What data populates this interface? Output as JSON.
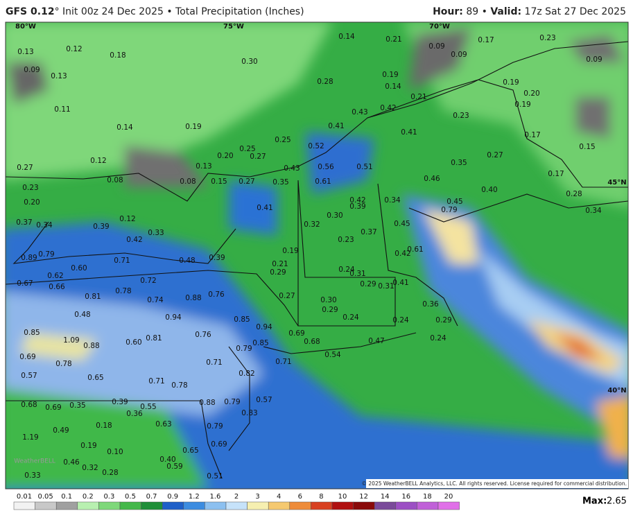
{
  "header": {
    "model": "GFS 0.12",
    "title_rest": "° Init 00z 24 Dec 2025 • Total Precipitation (Inches)",
    "hour_label": "Hour:",
    "hour": "89",
    "separator": " • ",
    "valid_label": "Valid:",
    "valid": "17z Sat 27 Dec 2025"
  },
  "map": {
    "labels": [
      "0.13",
      "0.12",
      "0.18",
      "0.09",
      "0.13",
      "0.30",
      "0.14",
      "0.21",
      "0.09",
      "0.09",
      "0.17",
      "0.23",
      "0.09",
      "0.28",
      "0.19",
      "0.14",
      "0.21",
      "0.19",
      "0.20",
      "0.19",
      "0.11",
      "0.43",
      "0.42",
      "0.23",
      "0.14",
      "0.19",
      "0.41",
      "0.41",
      "0.17",
      "0.25",
      "0.52",
      "0.25",
      "0.27",
      "0.15",
      "0.12",
      "0.20",
      "0.13",
      "0.56",
      "0.51",
      "0.43",
      "0.35",
      "0.27",
      "0.27",
      "0.17",
      "0.08",
      "0.08",
      "0.15",
      "0.27",
      "0.35",
      "0.61",
      "0.46",
      "0.40",
      "0.28",
      "0.23",
      "0.20",
      "0.42",
      "0.39",
      "0.34",
      "0.41",
      "0.79",
      "0.45",
      "0.34",
      "0.37",
      "0.34",
      "0.39",
      "0.12",
      "0.33",
      "0.30",
      "0.32",
      "0.45",
      "0.37",
      "0.42",
      "0.23",
      "0.19",
      "0.61",
      "0.42",
      "0.89",
      "0.79",
      "0.71",
      "0.48",
      "0.39",
      "0.60",
      "0.21",
      "0.24",
      "0.31",
      "0.29",
      "0.62",
      "0.67",
      "0.66",
      "0.72",
      "0.78",
      "0.29",
      "0.31",
      "0.41",
      "0.81",
      "0.74",
      "0.88",
      "0.76",
      "0.27",
      "0.30",
      "0.36",
      "0.29",
      "0.48",
      "0.94",
      "0.24",
      "0.85",
      "0.24",
      "0.29",
      "0.94",
      "0.85",
      "0.76",
      "0.69",
      "0.24",
      "1.09",
      "0.88",
      "0.60",
      "0.81",
      "0.85",
      "0.68",
      "0.47",
      "0.79",
      "0.54",
      "0.69",
      "0.78",
      "0.71",
      "0.71",
      "0.82",
      "0.57",
      "0.65",
      "0.71",
      "0.78",
      "0.68",
      "0.69",
      "0.35",
      "0.39",
      "0.55",
      "0.88",
      "0.79",
      "0.57",
      "0.36",
      "0.83",
      "0.49",
      "0.18",
      "0.63",
      "0.79",
      "1.19",
      "0.19",
      "0.10",
      "0.69",
      "0.65",
      "0.40",
      "0.46",
      "0.32",
      "0.28",
      "0.59",
      "0.51",
      "0.33"
    ],
    "graticule": [
      "80°W",
      "75°W",
      "70°W",
      "45°N",
      "40°N"
    ],
    "watermark": "WeatherBELL",
    "copyright": "© 2025 WeatherBELL Analytics, LLC. All rights reserved. License required for commercial distribution."
  },
  "colorbar": {
    "labels": [
      "0.01",
      "0.05",
      "0.1",
      "0.2",
      "0.3",
      "0.5",
      "0.7",
      "0.9",
      "1.2",
      "1.6",
      "2",
      "3",
      "4",
      "6",
      "8",
      "10",
      "12",
      "14",
      "16",
      "18",
      "20"
    ],
    "max_label": "Max:",
    "max": "2.65"
  }
}
